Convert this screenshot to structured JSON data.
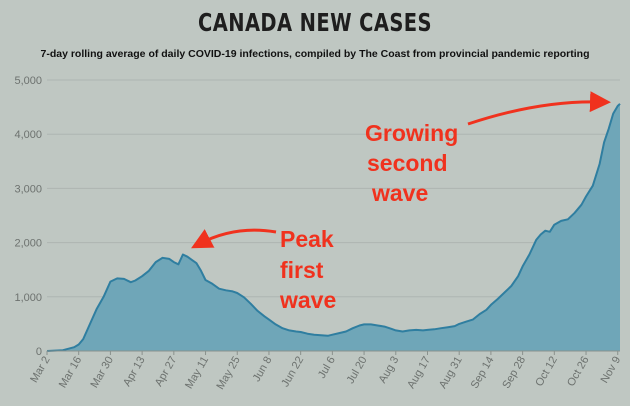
{
  "header": {
    "title": "CANADA NEW CASES",
    "subtitle": "7-day rolling average of daily COVID-19 infections, compiled by The Coast from provincial pandemic reporting"
  },
  "colors": {
    "background": "#bfc7c2",
    "area_fill": "#6fa6b8",
    "area_line": "#2f7ea0",
    "annotation": "#f0321e",
    "grid": "#aeb5b1",
    "axis_text": "#6d726f"
  },
  "chart_data": {
    "type": "area",
    "title": "CANADA NEW CASES",
    "subtitle": "7-day rolling average of daily COVID-19 infections, compiled by The Coast from provincial pandemic reporting",
    "xlabel": "",
    "ylabel": "",
    "ylim": [
      0,
      5000
    ],
    "y_ticks": [
      "0",
      "1,000",
      "2,000",
      "3,000",
      "4,000",
      "5,000"
    ],
    "y_tick_values": [
      0,
      1000,
      2000,
      3000,
      4000,
      5000
    ],
    "x_ticks": [
      "Mar 2",
      "Mar 16",
      "Mar 30",
      "Apr 13",
      "Apr 27",
      "May 11",
      "May 25",
      "Jun 8",
      "Jun 22",
      "Jul 6",
      "Jul 20",
      "Aug 3",
      "Aug 17",
      "Aug 31",
      "Sep 14",
      "Sep 28",
      "Oct 12",
      "Oct 26",
      "Nov 9"
    ],
    "grid": true,
    "series": [
      {
        "values": [
          [
            "Mar 2",
            0
          ],
          [
            "Mar 9",
            15
          ],
          [
            "Mar 14",
            70
          ],
          [
            "Mar 16",
            120
          ],
          [
            "Mar 18",
            220
          ],
          [
            "Mar 21",
            500
          ],
          [
            "Mar 24",
            780
          ],
          [
            "Mar 27",
            1000
          ],
          [
            "Mar 30",
            1280
          ],
          [
            "Apr 2",
            1340
          ],
          [
            "Apr 5",
            1330
          ],
          [
            "Apr 8",
            1270
          ],
          [
            "Apr 10",
            1300
          ],
          [
            "Apr 13",
            1380
          ],
          [
            "Apr 16",
            1480
          ],
          [
            "Apr 19",
            1640
          ],
          [
            "Apr 22",
            1720
          ],
          [
            "Apr 25",
            1700
          ],
          [
            "Apr 27",
            1640
          ],
          [
            "Apr 29",
            1600
          ],
          [
            "May 1",
            1780
          ],
          [
            "May 3",
            1740
          ],
          [
            "May 5",
            1680
          ],
          [
            "May 7",
            1620
          ],
          [
            "May 9",
            1480
          ],
          [
            "May 11",
            1310
          ],
          [
            "May 14",
            1240
          ],
          [
            "May 17",
            1150
          ],
          [
            "May 20",
            1120
          ],
          [
            "May 23",
            1100
          ],
          [
            "May 25",
            1070
          ],
          [
            "May 28",
            990
          ],
          [
            "May 31",
            870
          ],
          [
            "Jun 3",
            740
          ],
          [
            "Jun 6",
            640
          ],
          [
            "Jun 8",
            580
          ],
          [
            "Jun 11",
            490
          ],
          [
            "Jun 14",
            420
          ],
          [
            "Jun 17",
            380
          ],
          [
            "Jun 20",
            360
          ],
          [
            "Jun 22",
            350
          ],
          [
            "Jun 25",
            320
          ],
          [
            "Jun 28",
            300
          ],
          [
            "Jul 1",
            290
          ],
          [
            "Jul 4",
            280
          ],
          [
            "Jul 6",
            300
          ],
          [
            "Jul 9",
            330
          ],
          [
            "Jul 12",
            360
          ],
          [
            "Jul 15",
            420
          ],
          [
            "Jul 18",
            470
          ],
          [
            "Jul 20",
            490
          ],
          [
            "Jul 23",
            490
          ],
          [
            "Jul 26",
            470
          ],
          [
            "Jul 29",
            450
          ],
          [
            "Aug 1",
            410
          ],
          [
            "Aug 3",
            380
          ],
          [
            "Aug 6",
            360
          ],
          [
            "Aug 9",
            380
          ],
          [
            "Aug 12",
            390
          ],
          [
            "Aug 15",
            380
          ],
          [
            "Aug 17",
            390
          ],
          [
            "Aug 20",
            400
          ],
          [
            "Aug 23",
            420
          ],
          [
            "Aug 26",
            440
          ],
          [
            "Aug 29",
            460
          ],
          [
            "Aug 31",
            500
          ],
          [
            "Sep 3",
            540
          ],
          [
            "Sep 6",
            580
          ],
          [
            "Sep 9",
            680
          ],
          [
            "Sep 12",
            760
          ],
          [
            "Sep 14",
            850
          ],
          [
            "Sep 17",
            960
          ],
          [
            "Sep 20",
            1080
          ],
          [
            "Sep 23",
            1200
          ],
          [
            "Sep 26",
            1380
          ],
          [
            "Sep 28",
            1560
          ],
          [
            "Oct 1",
            1780
          ],
          [
            "Oct 4",
            2050
          ],
          [
            "Oct 6",
            2150
          ],
          [
            "Oct 8",
            2220
          ],
          [
            "Oct 10",
            2200
          ],
          [
            "Oct 12",
            2330
          ],
          [
            "Oct 15",
            2400
          ],
          [
            "Oct 18",
            2430
          ],
          [
            "Oct 21",
            2550
          ],
          [
            "Oct 24",
            2700
          ],
          [
            "Oct 26",
            2850
          ],
          [
            "Oct 29",
            3050
          ],
          [
            "Nov 1",
            3450
          ],
          [
            "Nov 3",
            3850
          ],
          [
            "Nov 5",
            4100
          ],
          [
            "Nov 7",
            4380
          ],
          [
            "Nov 9",
            4520
          ],
          [
            "Nov 10",
            4560
          ]
        ]
      }
    ],
    "annotations": [
      {
        "lines": [
          "Peak",
          "first",
          "wave"
        ],
        "points_to": [
          "May 1",
          1780
        ]
      },
      {
        "lines": [
          "Growing",
          "second",
          "wave"
        ],
        "points_to": [
          "Nov 9",
          4520
        ]
      }
    ]
  }
}
